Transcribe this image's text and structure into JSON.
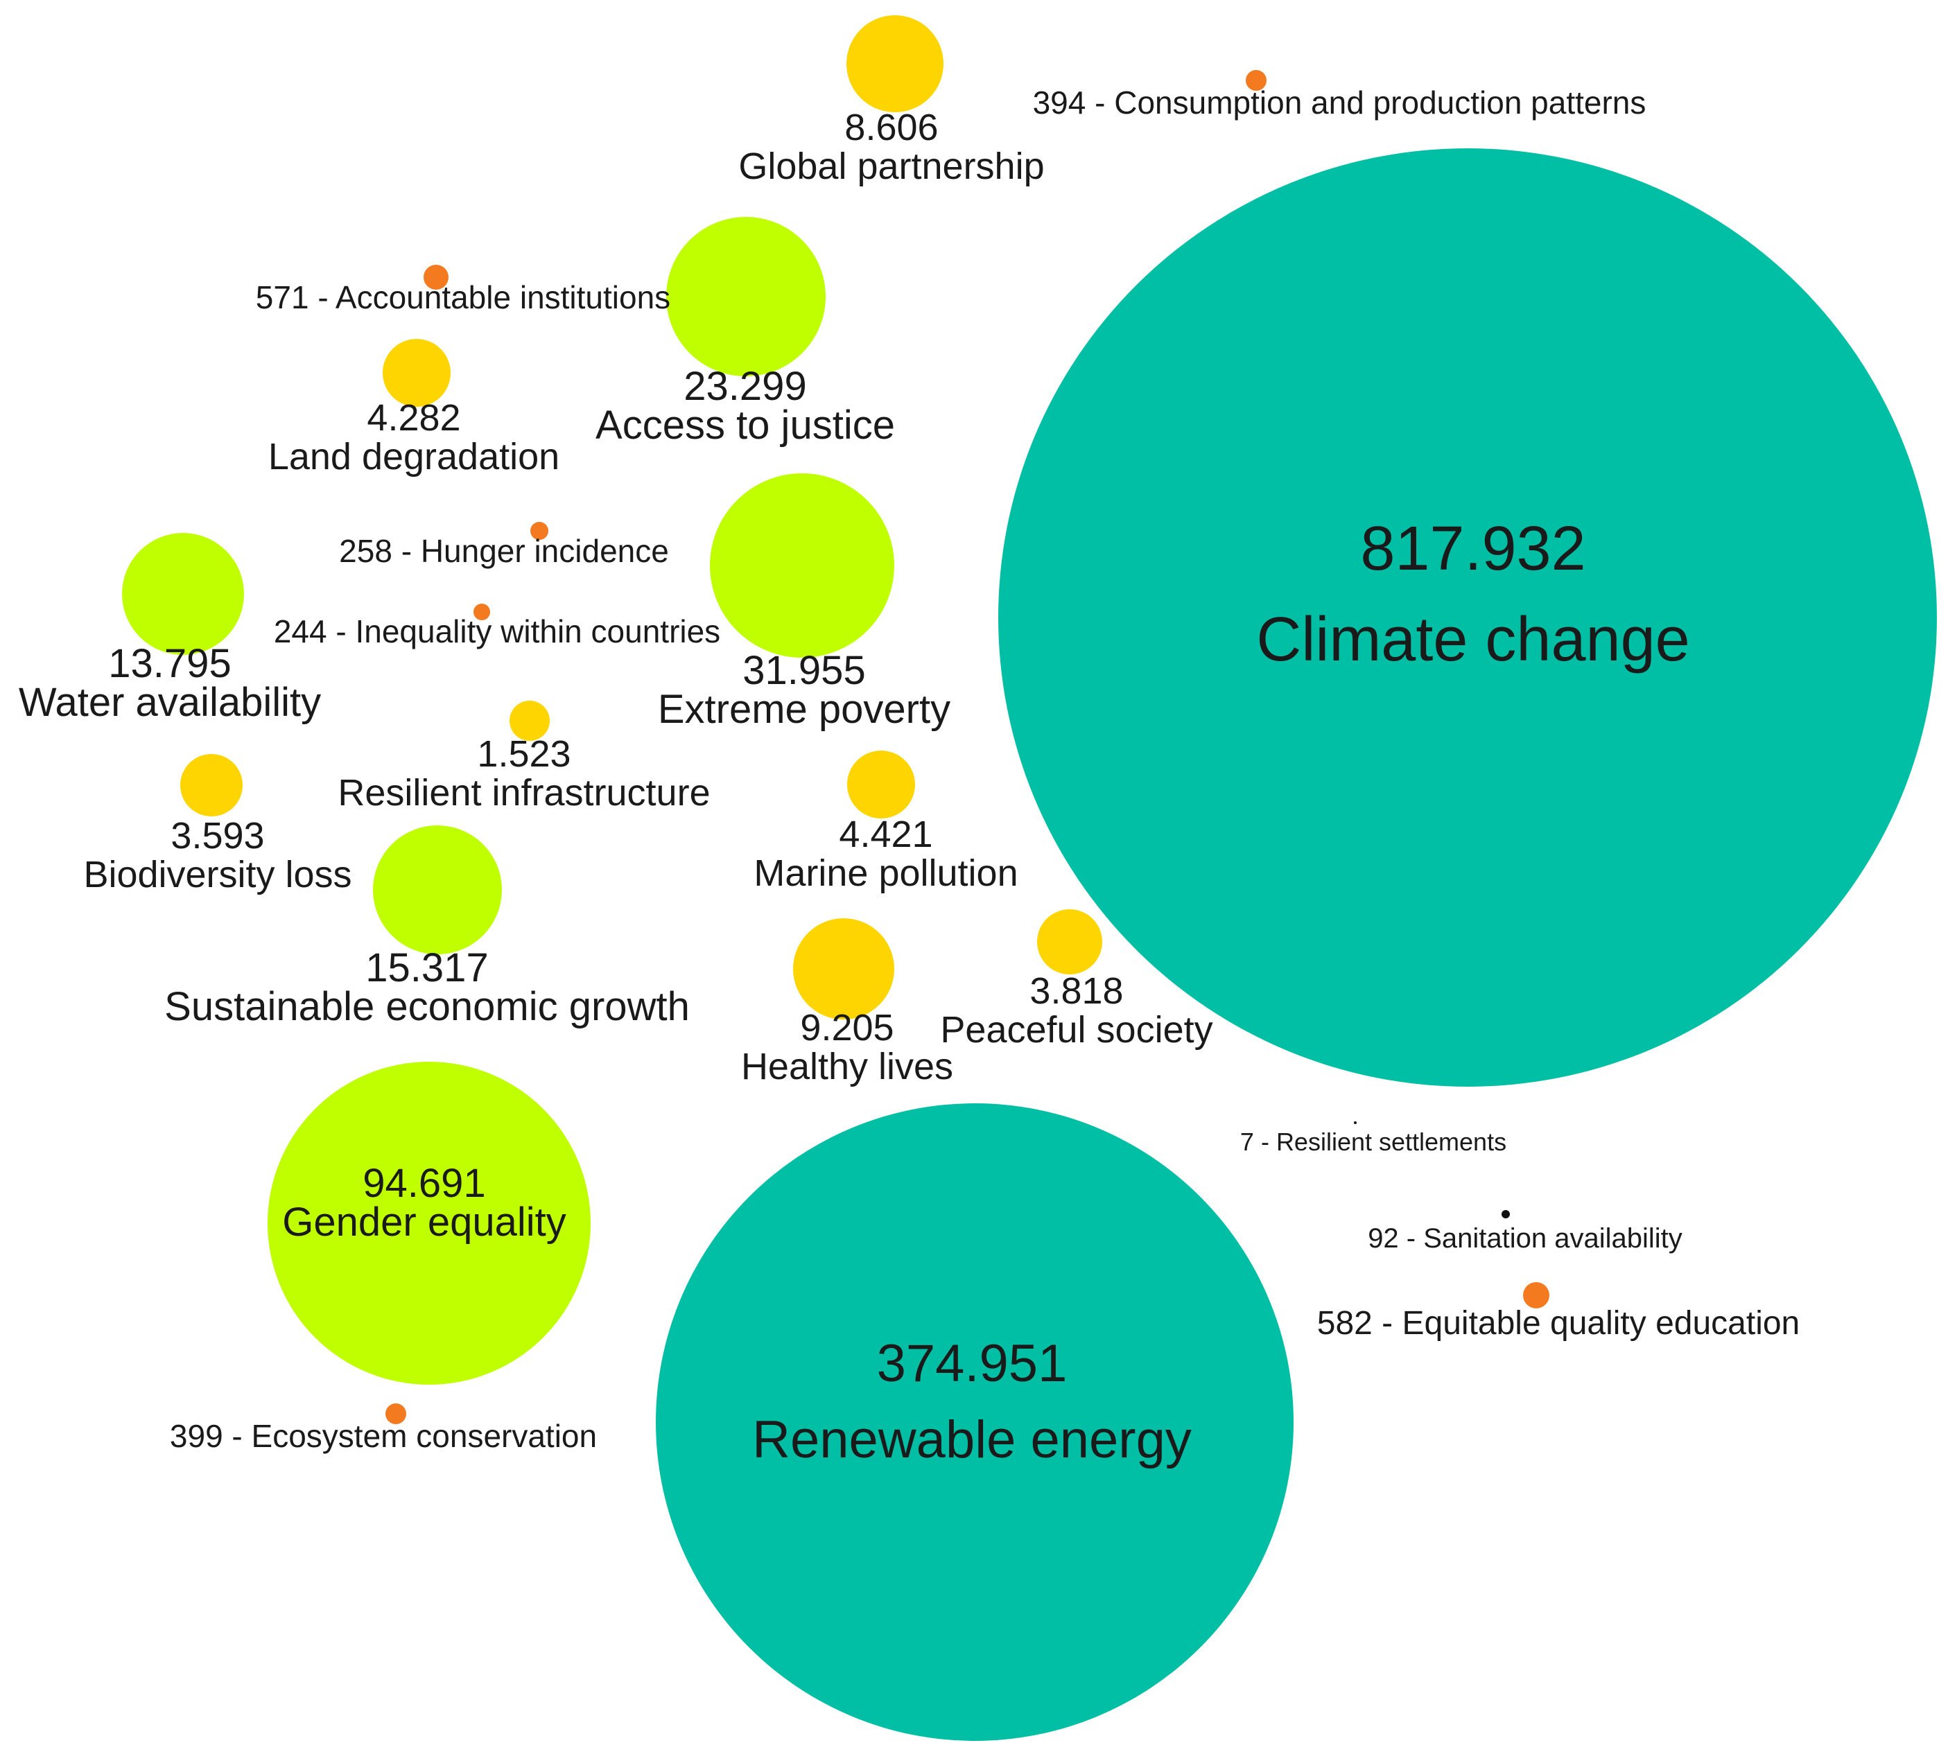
{
  "chart_data": {
    "type": "bubble",
    "colors": {
      "teal": "#00BFA5",
      "lime": "#BFFF00",
      "yellow": "#FFD500",
      "orange": "#F47A1F",
      "black": "#111111"
    },
    "bubbles": [
      {
        "label": "Climate change",
        "value": "817.932",
        "color": "teal",
        "layout": "inside-two-line"
      },
      {
        "label": "Renewable energy",
        "value": "374.951",
        "color": "teal",
        "layout": "inside-two-line"
      },
      {
        "label": "Gender equality",
        "value": "94.691",
        "color": "lime",
        "layout": "inside-tight"
      },
      {
        "label": "Extreme poverty",
        "value": "31.955",
        "color": "lime",
        "layout": "below"
      },
      {
        "label": "Access to justice",
        "value": "23.299",
        "color": "lime",
        "layout": "below"
      },
      {
        "label": "Sustainable economic growth",
        "value": "15.317",
        "color": "lime",
        "layout": "below"
      },
      {
        "label": "Water availability",
        "value": "13.795",
        "color": "lime",
        "layout": "below"
      },
      {
        "label": "Healthy lives",
        "value": "9.205",
        "color": "yellow",
        "layout": "below"
      },
      {
        "label": "Global partnership",
        "value": "8.606",
        "color": "yellow",
        "layout": "below"
      },
      {
        "label": "Marine pollution",
        "value": "4.421",
        "color": "yellow",
        "layout": "below"
      },
      {
        "label": "Land degradation",
        "value": "4.282",
        "color": "yellow",
        "layout": "below"
      },
      {
        "label": "Peaceful society",
        "value": "3.818",
        "color": "yellow",
        "layout": "below"
      },
      {
        "label": "Biodiversity loss",
        "value": "3.593",
        "color": "yellow",
        "layout": "below"
      },
      {
        "label": "Resilient infrastructure",
        "value": "1.523",
        "color": "yellow",
        "layout": "below"
      },
      {
        "label": "Equitable quality education",
        "value": "582",
        "color": "orange",
        "layout": "inline"
      },
      {
        "label": "Accountable institutions",
        "value": "571",
        "color": "orange",
        "layout": "inline"
      },
      {
        "label": "Ecosystem conservation",
        "value": "399",
        "color": "orange",
        "layout": "inline"
      },
      {
        "label": "Consumption and production patterns",
        "value": "394",
        "color": "orange",
        "layout": "inline"
      },
      {
        "label": "Hunger incidence",
        "value": "258",
        "color": "orange",
        "layout": "inline"
      },
      {
        "label": "Inequality within countries",
        "value": "244",
        "color": "orange",
        "layout": "inline"
      },
      {
        "label": "Sanitation availability",
        "value": "92",
        "color": "black",
        "layout": "inline"
      },
      {
        "label": "Resilient settlements",
        "value": "7",
        "color": "black",
        "layout": "inline"
      }
    ]
  }
}
